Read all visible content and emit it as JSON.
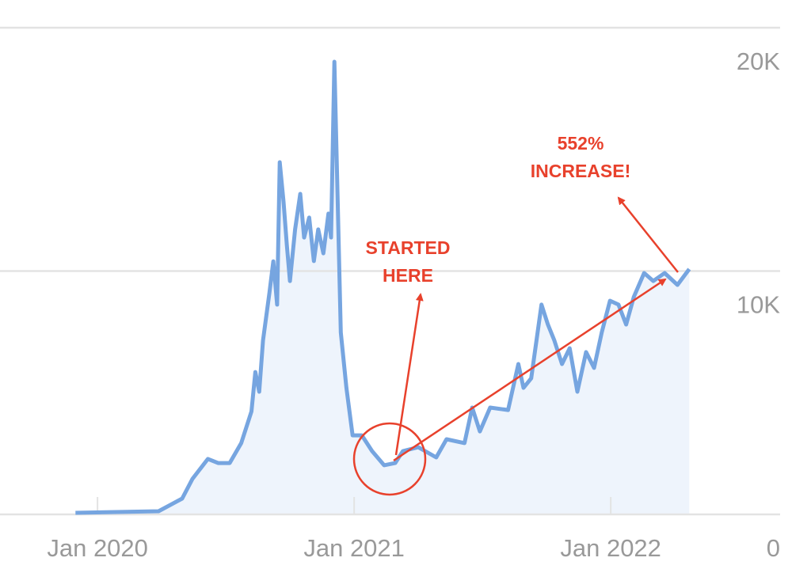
{
  "chart_data": {
    "type": "area",
    "x": [
      2019.914,
      2020.238,
      2020.33,
      2020.37,
      2020.43,
      2020.47,
      2020.515,
      2020.56,
      2020.6,
      2020.615,
      2020.63,
      2020.645,
      2020.67,
      2020.685,
      2020.7,
      2020.71,
      2020.725,
      2020.738,
      2020.75,
      2020.77,
      2020.79,
      2020.805,
      2020.825,
      2020.843,
      2020.86,
      2020.88,
      2020.9,
      2020.91,
      2020.923,
      2020.932,
      2020.948,
      2020.97,
      2020.994,
      2021.03,
      2021.07,
      2021.117,
      2021.16,
      2021.19,
      2021.25,
      2021.32,
      2021.36,
      2021.43,
      2021.46,
      2021.49,
      2021.53,
      2021.6,
      2021.64,
      2021.66,
      2021.69,
      2021.73,
      2021.755,
      2021.78,
      2021.81,
      2021.84,
      2021.87,
      2021.904,
      2021.935,
      2021.965,
      2021.997,
      2022.03,
      2022.06,
      2022.09,
      2022.13,
      2022.166,
      2022.21,
      2022.26,
      2022.306
    ],
    "values": [
      65,
      130,
      650,
      1460,
      2280,
      2110,
      2110,
      2930,
      4230,
      5850,
      5040,
      7150,
      9110,
      10400,
      8620,
      14470,
      12850,
      11060,
      9590,
      11710,
      13170,
      11380,
      12200,
      10410,
      11710,
      10730,
      12360,
      11380,
      18600,
      14630,
      7480,
      5200,
      3250,
      3250,
      2600,
      2020,
      2110,
      2600,
      2760,
      2340,
      3090,
      2930,
      4390,
      3410,
      4390,
      4290,
      6180,
      5200,
      5590,
      8620,
      7800,
      7150,
      6180,
      6830,
      5040,
      6670,
      6020,
      7480,
      8780,
      8620,
      7800,
      8940,
      9920,
      9590,
      9920,
      9430,
      10080
    ],
    "color": "#76a5e0",
    "fill": "#eef4fc",
    "xlim": [
      2019.62,
      2022.66
    ],
    "xticks": [
      {
        "value": 2020,
        "label": "Jan 2020"
      },
      {
        "value": 2021,
        "label": "Jan 2021"
      },
      {
        "value": 2022,
        "label": "Jan 2022"
      }
    ],
    "ylim": [
      0,
      20000
    ],
    "yticks": [
      0,
      {
        "value": 10000,
        "label": "10K"
      },
      {
        "value": 20000,
        "label": "20K"
      }
    ],
    "grid": true,
    "annotations": [
      {
        "lines": [
          "STARTED",
          "HERE"
        ]
      },
      {
        "lines": [
          "552%",
          "INCREASE!"
        ]
      }
    ]
  }
}
